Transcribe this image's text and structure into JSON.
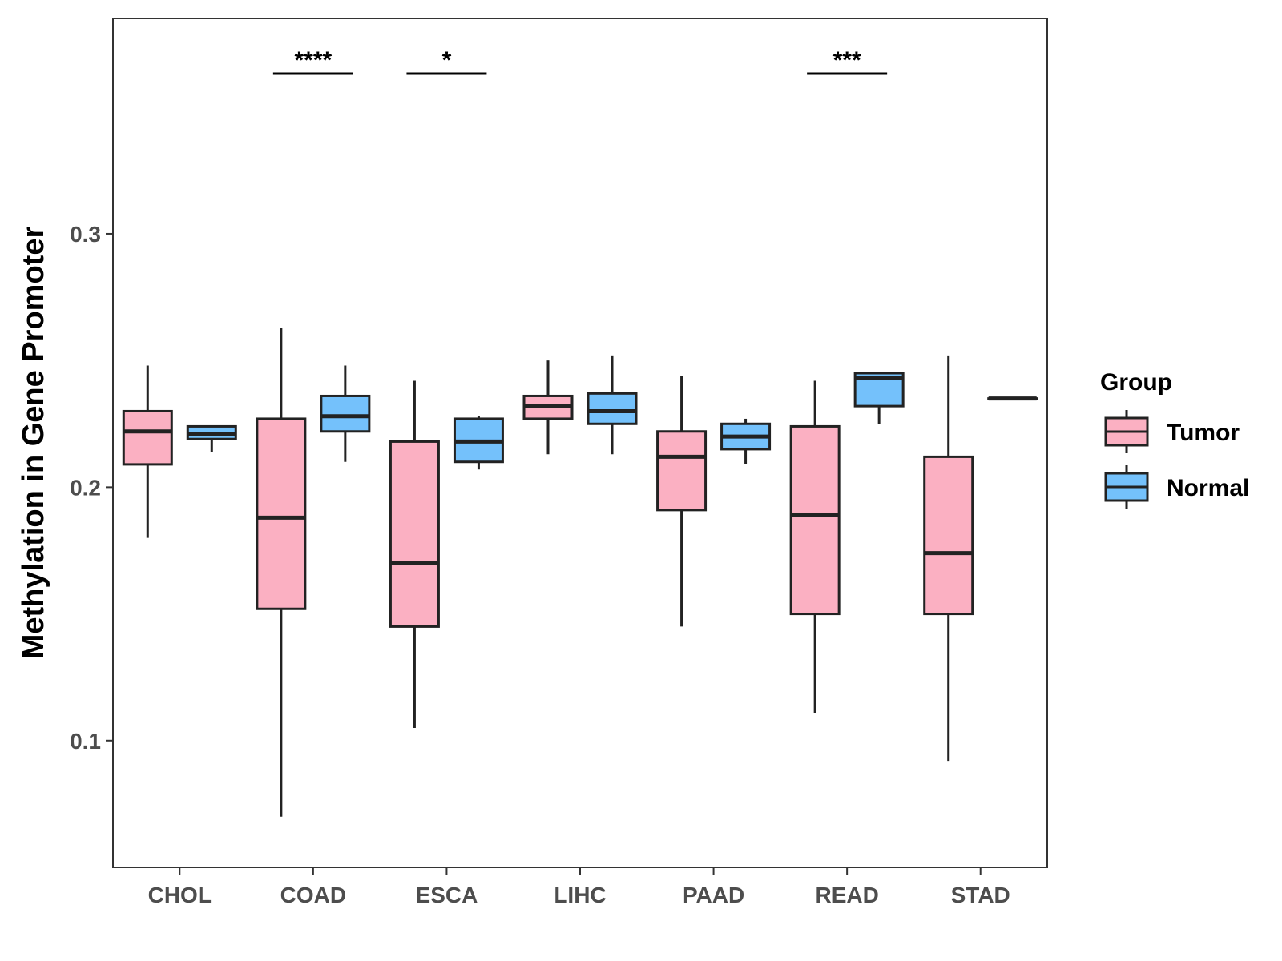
{
  "colors": {
    "tumor": "#fbb0c2",
    "normal": "#74c1fb",
    "stroke": "#222222",
    "axis": "#333333"
  },
  "chart_data": {
    "type": "boxplot",
    "title": "",
    "xlabel": "",
    "ylabel": "Methylation in Gene Promoter",
    "ylim": [
      0.05,
      0.385
    ],
    "yticks": [
      0.1,
      0.2,
      0.3
    ],
    "ytick_labels": [
      "0.1",
      "0.2",
      "0.3"
    ],
    "categories": [
      "CHOL",
      "COAD",
      "ESCA",
      "LIHC",
      "PAAD",
      "READ",
      "STAD"
    ],
    "legend": {
      "title": "Group",
      "position": "right",
      "entries": [
        "Tumor",
        "Normal"
      ]
    },
    "series": [
      {
        "name": "Tumor",
        "boxes": [
          {
            "min": 0.18,
            "q1": 0.209,
            "median": 0.222,
            "q3": 0.23,
            "max": 0.248
          },
          {
            "min": 0.07,
            "q1": 0.152,
            "median": 0.188,
            "q3": 0.227,
            "max": 0.263
          },
          {
            "min": 0.105,
            "q1": 0.145,
            "median": 0.17,
            "q3": 0.218,
            "max": 0.242
          },
          {
            "min": 0.213,
            "q1": 0.227,
            "median": 0.232,
            "q3": 0.236,
            "max": 0.25
          },
          {
            "min": 0.145,
            "q1": 0.191,
            "median": 0.212,
            "q3": 0.222,
            "max": 0.244
          },
          {
            "min": 0.111,
            "q1": 0.15,
            "median": 0.189,
            "q3": 0.224,
            "max": 0.242
          },
          {
            "min": 0.092,
            "q1": 0.15,
            "median": 0.174,
            "q3": 0.212,
            "max": 0.252
          }
        ]
      },
      {
        "name": "Normal",
        "boxes": [
          {
            "min": 0.214,
            "q1": 0.219,
            "median": 0.221,
            "q3": 0.224,
            "max": 0.224
          },
          {
            "min": 0.21,
            "q1": 0.222,
            "median": 0.228,
            "q3": 0.236,
            "max": 0.248
          },
          {
            "min": 0.207,
            "q1": 0.21,
            "median": 0.218,
            "q3": 0.227,
            "max": 0.228
          },
          {
            "min": 0.213,
            "q1": 0.225,
            "median": 0.23,
            "q3": 0.237,
            "max": 0.252
          },
          {
            "min": 0.209,
            "q1": 0.215,
            "median": 0.22,
            "q3": 0.225,
            "max": 0.227
          },
          {
            "min": 0.225,
            "q1": 0.232,
            "median": 0.243,
            "q3": 0.245,
            "max": 0.245
          },
          {
            "min": 0.235,
            "q1": 0.235,
            "median": 0.235,
            "q3": 0.235,
            "max": 0.235
          }
        ]
      }
    ],
    "significance": [
      {
        "category": "COAD",
        "label": "****"
      },
      {
        "category": "ESCA",
        "label": "*"
      },
      {
        "category": "READ",
        "label": "***"
      }
    ]
  }
}
